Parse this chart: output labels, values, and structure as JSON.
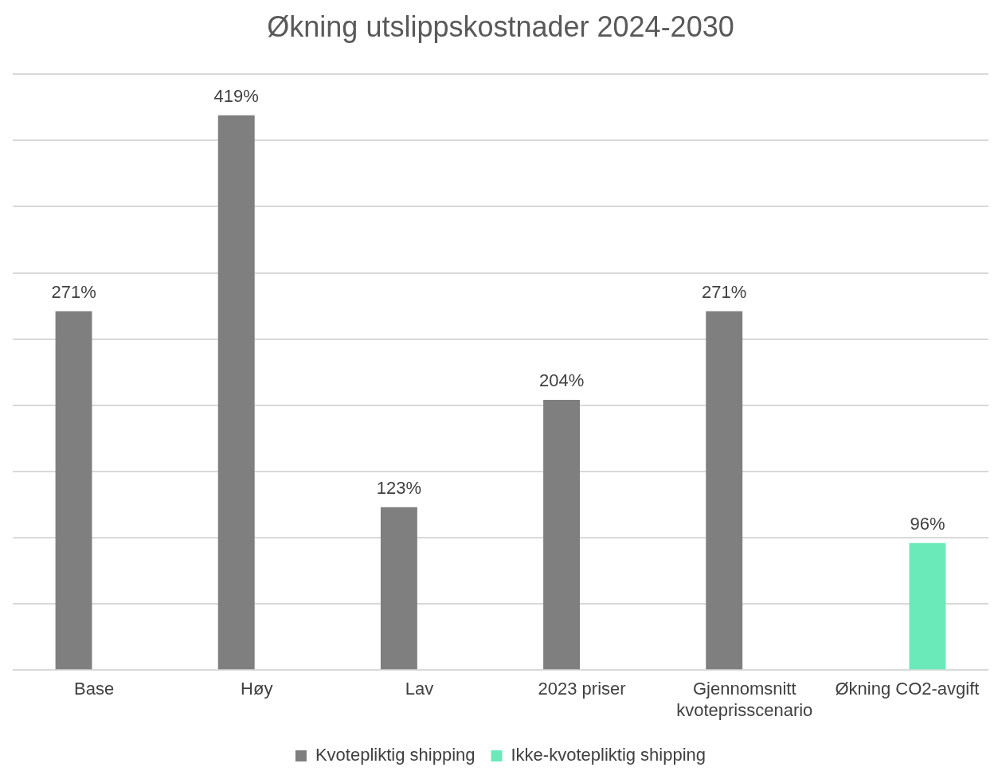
{
  "chart_data": {
    "type": "bar",
    "title": "Økning utslippskostnader 2024-2030",
    "categories": [
      "Base",
      "Høy",
      "Lav",
      "2023 priser",
      "Gjennomsnitt kvoteprisscenario",
      "Økning CO2-avgift"
    ],
    "series": [
      {
        "name": "Kvotepliktig shipping",
        "color": "#7f7f7f",
        "values": [
          271,
          419,
          123,
          204,
          271,
          null
        ],
        "value_labels": [
          "271%",
          "419%",
          "123%",
          "204%",
          "271%",
          null
        ]
      },
      {
        "name": "Ikke-kvotepliktig shipping",
        "color": "#6aeab8",
        "values": [
          null,
          null,
          null,
          null,
          null,
          96
        ],
        "value_labels": [
          null,
          null,
          null,
          null,
          null,
          "96%"
        ]
      }
    ],
    "ylim": [
      0,
      450
    ],
    "yticks": [
      {
        "value": 0,
        "label": null
      },
      {
        "value": 50,
        "label": null
      },
      {
        "value": 100,
        "label": null
      },
      {
        "value": 150,
        "label": null
      },
      {
        "value": 200,
        "label": null
      },
      {
        "value": 250,
        "label": null
      },
      {
        "value": 300,
        "label": null
      },
      {
        "value": 350,
        "label": null
      },
      {
        "value": 400,
        "label": null
      },
      {
        "value": 450,
        "label": null
      }
    ],
    "tick_labels": "x",
    "grid": "y",
    "legend": "bottom"
  }
}
